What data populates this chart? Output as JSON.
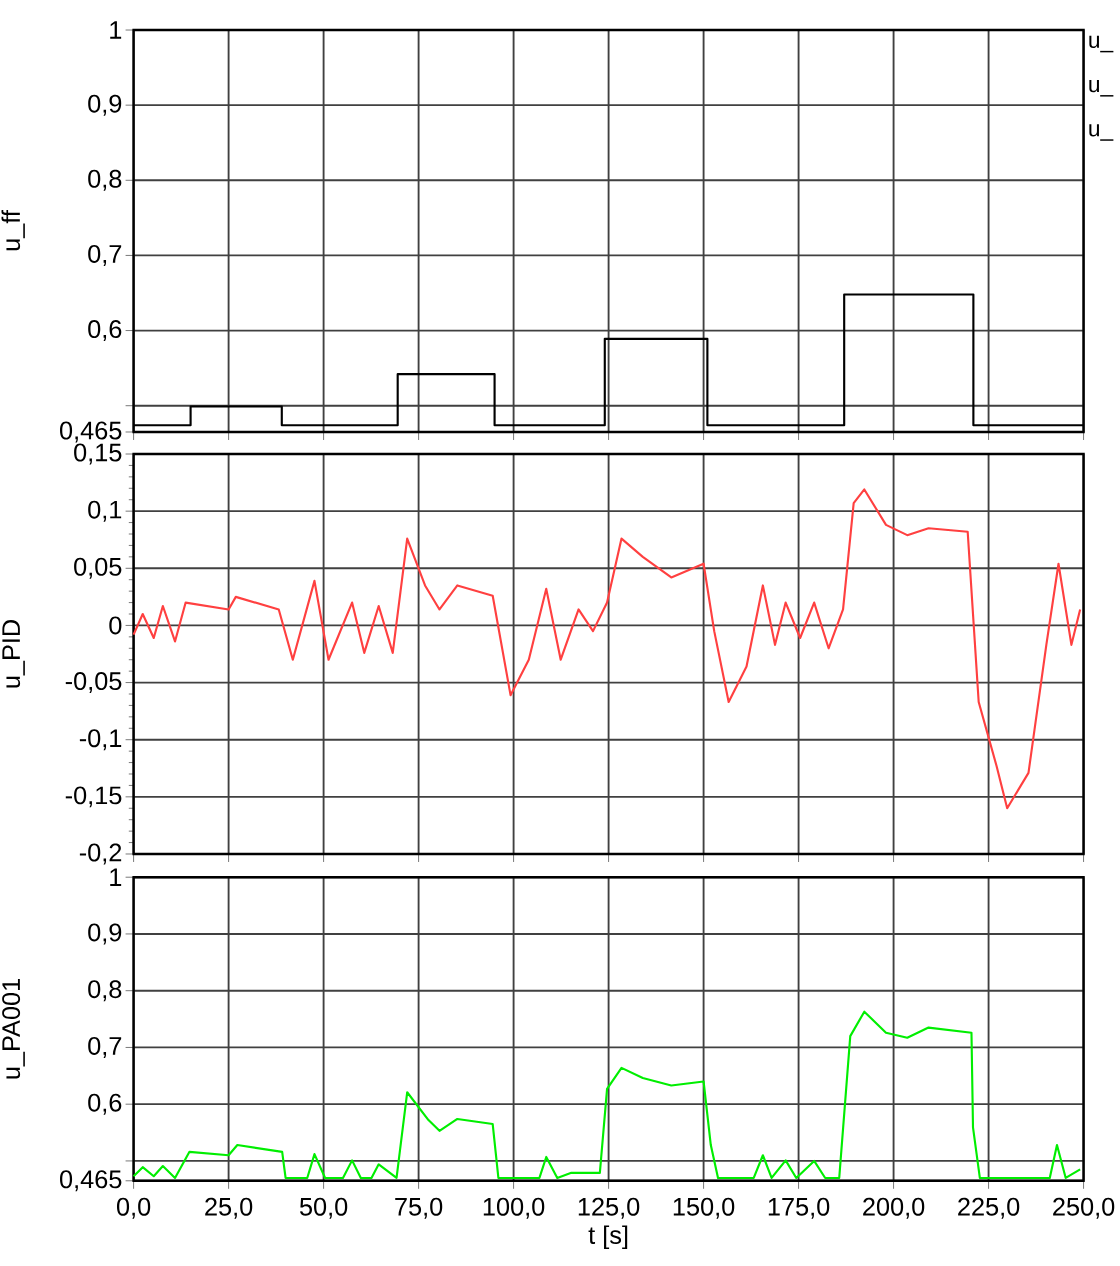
{
  "chart_data": [
    {
      "type": "step",
      "ylabel": "u_ff",
      "xlim": [
        0,
        250
      ],
      "ylim": [
        0.465,
        1
      ],
      "grid": true,
      "tick_labels": "y",
      "xticks": [
        0,
        25,
        50,
        75,
        100,
        125,
        150,
        175,
        200,
        225,
        250
      ],
      "yticks": [
        {
          "value": 0.465,
          "label": "0,465"
        },
        {
          "value": 0.5,
          "label": null
        },
        {
          "value": 0.6,
          "label": "0,6"
        },
        {
          "value": 0.7,
          "label": "0,7"
        },
        {
          "value": 0.8,
          "label": "0,8"
        },
        {
          "value": 0.9,
          "label": "0,9"
        },
        1
      ],
      "annotations": [
        "u_",
        "u_",
        "u_"
      ],
      "series": [
        {
          "color": "#000000",
          "x": [
            0,
            15,
            39,
            69.5,
            95,
            124,
            151,
            187,
            221,
            250
          ],
          "values": [
            0.474,
            0.499,
            0.474,
            0.542,
            0.474,
            0.589,
            0.474,
            0.648,
            0.474,
            0.474
          ]
        }
      ]
    },
    {
      "type": "line",
      "ylabel": "u_PID",
      "xlim": [
        0,
        250
      ],
      "ylim": [
        -0.2,
        0.15
      ],
      "grid": true,
      "tick_labels": "y",
      "xticks": [
        0,
        25,
        50,
        75,
        100,
        125,
        150,
        175,
        200,
        225,
        250
      ],
      "yticks": [
        {
          "value": -0.2,
          "label": "-0,2"
        },
        {
          "value": -0.15,
          "label": "-0,15"
        },
        {
          "value": -0.1,
          "label": "-0,1"
        },
        {
          "value": -0.05,
          "label": "-0,05"
        },
        0,
        {
          "value": 0.05,
          "label": "0,05"
        },
        {
          "value": 0.1,
          "label": "0,1"
        },
        {
          "value": 0.15,
          "label": "0,15"
        }
      ],
      "series": [
        {
          "color": "#ff4040",
          "x": [
            0,
            2.4,
            5.3,
            7.7,
            10.9,
            13.7,
            25,
            26.9,
            38.2,
            41.9,
            47.6,
            51.3,
            57.5,
            60.7,
            64.5,
            68.2,
            72,
            76.7,
            80.5,
            85.2,
            94.5,
            99.2,
            104,
            108.6,
            112.4,
            117.1,
            120.9,
            124.6,
            128.4,
            134,
            141.5,
            150,
            152.8,
            156.6,
            161.3,
            165.6,
            168.8,
            171.6,
            175.4,
            179.1,
            182.9,
            186.7,
            189.5,
            192.3,
            198,
            203.6,
            209.2,
            219.5,
            222.4,
            227.1,
            229.9,
            235.5,
            240.2,
            243.4,
            246.8,
            249.1
          ],
          "values": [
            -0.008,
            0.01,
            -0.011,
            0.017,
            -0.014,
            0.02,
            0.014,
            0.025,
            0.014,
            -0.03,
            0.039,
            -0.03,
            0.02,
            -0.024,
            0.017,
            -0.024,
            0.076,
            0.035,
            0.014,
            0.035,
            0.026,
            -0.061,
            -0.03,
            0.032,
            -0.03,
            0.014,
            -0.005,
            0.02,
            0.076,
            0.06,
            0.042,
            0.054,
            -0.005,
            -0.067,
            -0.036,
            0.035,
            -0.017,
            0.02,
            -0.011,
            0.02,
            -0.02,
            0.014,
            0.107,
            0.119,
            0.088,
            0.079,
            0.085,
            0.082,
            -0.067,
            -0.123,
            -0.16,
            -0.129,
            -0.017,
            0.054,
            -0.017,
            0.014
          ]
        }
      ]
    },
    {
      "type": "line",
      "ylabel": "u_PA001",
      "xlabel": "t [s]",
      "xlim": [
        0,
        250
      ],
      "ylim": [
        0.465,
        1
      ],
      "grid": true,
      "xticks": [
        {
          "value": 0,
          "label": "0,0"
        },
        {
          "value": 25,
          "label": "25,0"
        },
        {
          "value": 50,
          "label": "50,0"
        },
        {
          "value": 75,
          "label": "75,0"
        },
        {
          "value": 100,
          "label": "100,0"
        },
        {
          "value": 125,
          "label": "125,0"
        },
        {
          "value": 150,
          "label": "150,0"
        },
        {
          "value": 175,
          "label": "175,0"
        },
        {
          "value": 200,
          "label": "200,0"
        },
        {
          "value": 225,
          "label": "225,0"
        },
        {
          "value": 250,
          "label": "250,0"
        }
      ],
      "yticks": [
        {
          "value": 0.465,
          "label": "0,465"
        },
        {
          "value": 0.5,
          "label": null
        },
        {
          "value": 0.6,
          "label": "0,6"
        },
        {
          "value": 0.7,
          "label": "0,7"
        },
        {
          "value": 0.8,
          "label": "0,8"
        },
        {
          "value": 0.9,
          "label": "0,9"
        },
        1
      ],
      "series": [
        {
          "color": "#00ee00",
          "x": [
            0,
            2.4,
            5.3,
            7.7,
            10.9,
            14.7,
            25,
            27.3,
            39.1,
            40,
            45.7,
            47.6,
            50.4,
            55.1,
            57.5,
            59.8,
            62.6,
            64.5,
            69.2,
            72,
            77.6,
            80.5,
            85.2,
            94.5,
            96,
            106.8,
            108.6,
            111.5,
            115.2,
            122.7,
            124.6,
            128.4,
            134,
            141.5,
            150,
            151.9,
            153.8,
            163.2,
            165.6,
            167.9,
            171.6,
            174.4,
            179.1,
            182,
            185.7,
            188.6,
            192.3,
            198,
            203.6,
            209.2,
            220.5,
            220.9,
            222.7,
            241.1,
            243,
            245.3,
            249.1
          ],
          "values": [
            0.473,
            0.489,
            0.473,
            0.491,
            0.47,
            0.516,
            0.51,
            0.528,
            0.516,
            0.47,
            0.47,
            0.512,
            0.47,
            0.47,
            0.501,
            0.47,
            0.47,
            0.494,
            0.47,
            0.621,
            0.572,
            0.553,
            0.574,
            0.565,
            0.47,
            0.47,
            0.507,
            0.47,
            0.479,
            0.479,
            0.627,
            0.664,
            0.646,
            0.633,
            0.64,
            0.528,
            0.47,
            0.47,
            0.51,
            0.47,
            0.501,
            0.47,
            0.5,
            0.47,
            0.47,
            0.72,
            0.763,
            0.726,
            0.717,
            0.735,
            0.726,
            0.559,
            0.47,
            0.47,
            0.528,
            0.47,
            0.485
          ]
        }
      ]
    }
  ]
}
